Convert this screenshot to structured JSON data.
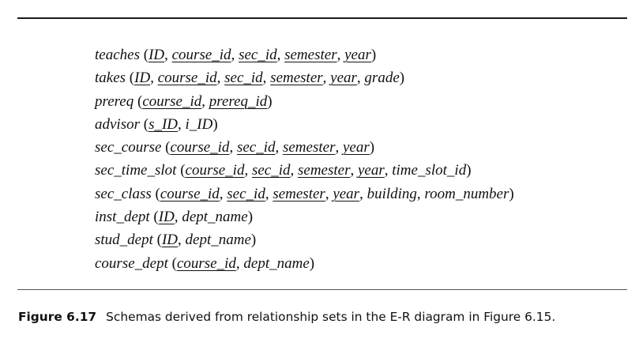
{
  "schemas": [
    {
      "name": "teaches",
      "attrs": [
        {
          "text": "ID",
          "pk": true
        },
        {
          "text": "course_id",
          "pk": true
        },
        {
          "text": "sec_id",
          "pk": true
        },
        {
          "text": "semester",
          "pk": true
        },
        {
          "text": "year",
          "pk": true
        }
      ]
    },
    {
      "name": "takes",
      "attrs": [
        {
          "text": "ID",
          "pk": true
        },
        {
          "text": "course_id",
          "pk": true
        },
        {
          "text": "sec_id",
          "pk": true
        },
        {
          "text": "semester",
          "pk": true
        },
        {
          "text": "year",
          "pk": true
        },
        {
          "text": "grade",
          "pk": false
        }
      ]
    },
    {
      "name": "prereq",
      "attrs": [
        {
          "text": "course_id",
          "pk": true
        },
        {
          "text": "prereq_id",
          "pk": true
        }
      ]
    },
    {
      "name": "advisor",
      "attrs": [
        {
          "text": "s_ID",
          "pk": true
        },
        {
          "text": "i_ID",
          "pk": false
        }
      ]
    },
    {
      "name": "sec_course",
      "attrs": [
        {
          "text": "course_id",
          "pk": true
        },
        {
          "text": "sec_id",
          "pk": true
        },
        {
          "text": "semester",
          "pk": true
        },
        {
          "text": "year",
          "pk": true
        }
      ]
    },
    {
      "name": "sec_time_slot",
      "attrs": [
        {
          "text": "course_id",
          "pk": true
        },
        {
          "text": "sec_id",
          "pk": true
        },
        {
          "text": "semester",
          "pk": true
        },
        {
          "text": "year",
          "pk": true
        },
        {
          "text": "time_slot_id",
          "pk": false
        }
      ]
    },
    {
      "name": "sec_class",
      "attrs": [
        {
          "text": "course_id",
          "pk": true
        },
        {
          "text": "sec_id",
          "pk": true
        },
        {
          "text": "semester",
          "pk": true
        },
        {
          "text": "year",
          "pk": true
        },
        {
          "text": "building",
          "pk": false
        },
        {
          "text": "room_number",
          "pk": false
        }
      ]
    },
    {
      "name": "inst_dept",
      "attrs": [
        {
          "text": "ID",
          "pk": true
        },
        {
          "text": "dept_name",
          "pk": false
        }
      ]
    },
    {
      "name": "stud_dept",
      "attrs": [
        {
          "text": "ID",
          "pk": true
        },
        {
          "text": "dept_name",
          "pk": false
        }
      ]
    },
    {
      "name": "course_dept",
      "attrs": [
        {
          "text": "course_id",
          "pk": true
        },
        {
          "text": "dept_name",
          "pk": false
        }
      ]
    }
  ],
  "caption": {
    "label": "Figure 6.17",
    "text": "Schemas derived from relationship sets in the E-R diagram in Figure 6.15."
  }
}
